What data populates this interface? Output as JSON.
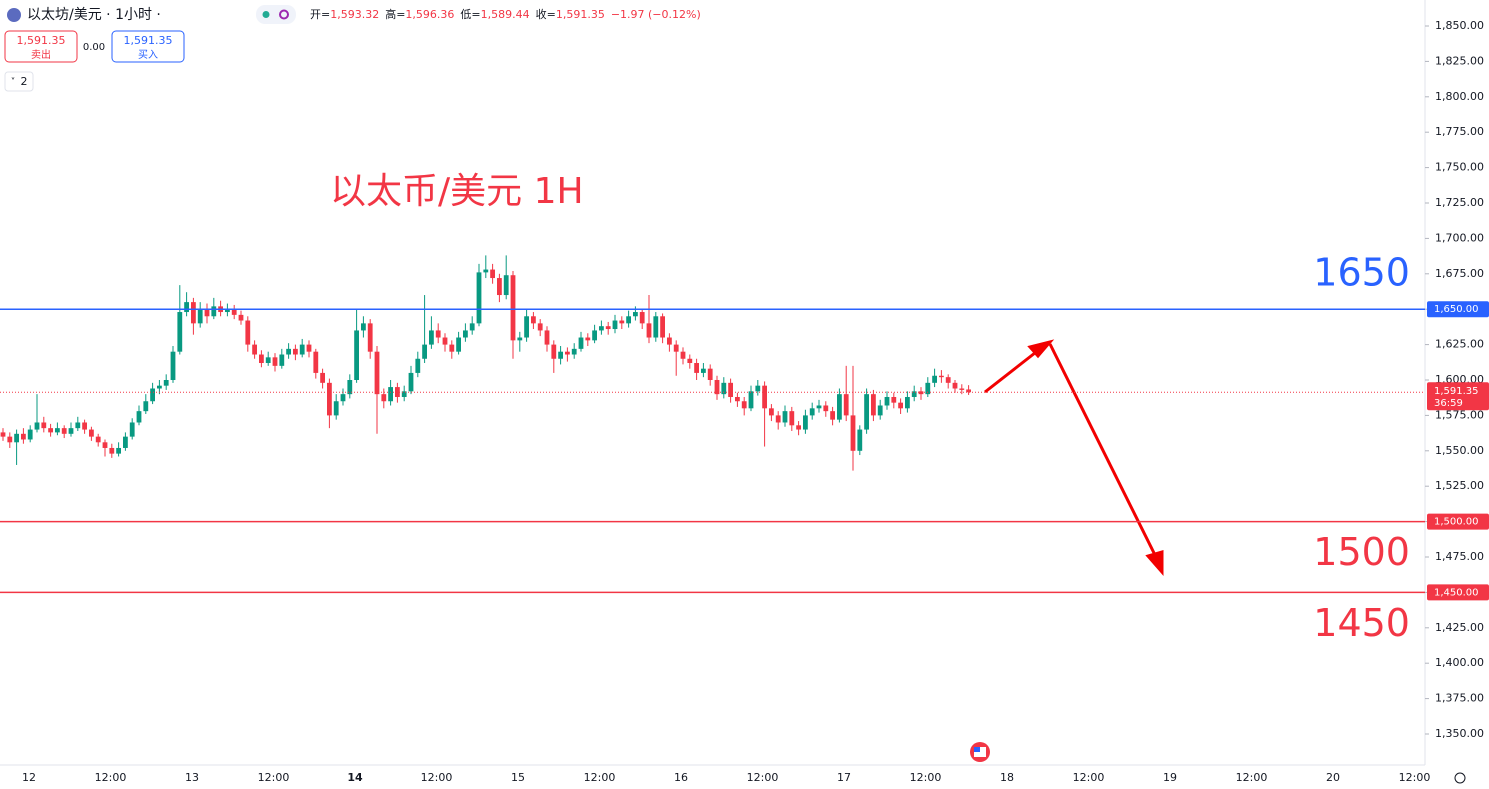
{
  "header": {
    "symbol": "以太坊/美元 · 1小时 ·",
    "ohlc": [
      {
        "label": "开=",
        "value": "1,593.32"
      },
      {
        "label": "高=",
        "value": "1,596.36"
      },
      {
        "label": "低=",
        "value": "1,589.44"
      },
      {
        "label": "收=",
        "value": "1,591.35"
      }
    ],
    "change": "−1.97 (−0.12%)",
    "sell_price": "1,591.35",
    "sell_label": "卖出",
    "spread": "0.00",
    "buy_price": "1,591.35",
    "buy_label": "买入",
    "indicators": "2"
  },
  "chart_data": {
    "type": "candlestick",
    "title": "以太币/美元 1H",
    "up_color": "#089981",
    "down_color": "#f23645",
    "ylim": [
      1350,
      1850
    ],
    "yticks": [
      {
        "value": 1350,
        "label": "1,350.00"
      },
      {
        "value": 1375,
        "label": "1,375.00"
      },
      {
        "value": 1400,
        "label": "1,400.00"
      },
      {
        "value": 1425,
        "label": "1,425.00"
      },
      {
        "value": 1450,
        "label": "1,450.00"
      },
      {
        "value": 1475,
        "label": "1,475.00"
      },
      {
        "value": 1500,
        "label": "1,500.00"
      },
      {
        "value": 1525,
        "label": "1,525.00"
      },
      {
        "value": 1550,
        "label": "1,550.00"
      },
      {
        "value": 1575,
        "label": "1,575.00"
      },
      {
        "value": 1600,
        "label": "1,600.00"
      },
      {
        "value": 1625,
        "label": "1,625.00"
      },
      {
        "value": 1650,
        "label": "1,650.00"
      },
      {
        "value": 1675,
        "label": "1,675.00"
      },
      {
        "value": 1700,
        "label": "1,700.00"
      },
      {
        "value": 1725,
        "label": "1,725.00"
      },
      {
        "value": 1750,
        "label": "1,750.00"
      },
      {
        "value": 1775,
        "label": "1,775.00"
      },
      {
        "value": 1800,
        "label": "1,800.00"
      },
      {
        "value": 1825,
        "label": "1,825.00"
      },
      {
        "value": 1850,
        "label": "1,850.00"
      }
    ],
    "xtick_labels": [
      "12",
      "12:00",
      "13",
      "12:00",
      "14",
      "12:00",
      "15",
      "12:00",
      "16",
      "12:00",
      "17",
      "12:00",
      "18",
      "12:00",
      "19",
      "12:00",
      "20",
      "12:00"
    ],
    "levels": [
      {
        "value": 1650,
        "label": "1,650.00",
        "annotation": "1650",
        "color": "#2962ff"
      },
      {
        "value": 1500,
        "label": "1,500.00",
        "annotation": "1500",
        "color": "#f23645"
      },
      {
        "value": 1450,
        "label": "1,450.00",
        "annotation": "1450",
        "color": "#f23645"
      }
    ],
    "last_price": {
      "value": 1591.35,
      "label": "1,591.35",
      "countdown": "36:59"
    },
    "ohlc": [
      [
        1563,
        1566,
        1557,
        1560
      ],
      [
        1560,
        1563,
        1552,
        1556
      ],
      [
        1556,
        1565,
        1540,
        1562
      ],
      [
        1562,
        1566,
        1555,
        1558
      ],
      [
        1558,
        1568,
        1556,
        1565
      ],
      [
        1565,
        1590,
        1563,
        1570
      ],
      [
        1570,
        1574,
        1563,
        1566
      ],
      [
        1566,
        1569,
        1560,
        1563
      ],
      [
        1563,
        1570,
        1561,
        1566
      ],
      [
        1566,
        1568,
        1559,
        1562
      ],
      [
        1562,
        1570,
        1560,
        1566
      ],
      [
        1566,
        1574,
        1564,
        1570
      ],
      [
        1570,
        1572,
        1562,
        1565
      ],
      [
        1565,
        1567,
        1557,
        1560
      ],
      [
        1560,
        1562,
        1553,
        1556
      ],
      [
        1556,
        1558,
        1546,
        1552
      ],
      [
        1552,
        1555,
        1545,
        1548
      ],
      [
        1548,
        1556,
        1546,
        1552
      ],
      [
        1552,
        1563,
        1550,
        1560
      ],
      [
        1560,
        1573,
        1558,
        1570
      ],
      [
        1570,
        1582,
        1568,
        1578
      ],
      [
        1578,
        1590,
        1576,
        1585
      ],
      [
        1585,
        1598,
        1583,
        1594
      ],
      [
        1594,
        1600,
        1590,
        1596
      ],
      [
        1596,
        1604,
        1593,
        1600
      ],
      [
        1600,
        1624,
        1598,
        1620
      ],
      [
        1620,
        1667,
        1618,
        1648
      ],
      [
        1648,
        1662,
        1645,
        1655
      ],
      [
        1655,
        1658,
        1632,
        1640
      ],
      [
        1640,
        1655,
        1637,
        1650
      ],
      [
        1650,
        1654,
        1640,
        1645
      ],
      [
        1645,
        1658,
        1643,
        1652
      ],
      [
        1652,
        1656,
        1645,
        1648
      ],
      [
        1648,
        1654,
        1645,
        1650
      ],
      [
        1650,
        1653,
        1643,
        1646
      ],
      [
        1646,
        1649,
        1639,
        1642
      ],
      [
        1642,
        1645,
        1620,
        1625
      ],
      [
        1625,
        1628,
        1615,
        1618
      ],
      [
        1618,
        1621,
        1609,
        1612
      ],
      [
        1612,
        1620,
        1610,
        1616
      ],
      [
        1616,
        1619,
        1606,
        1610
      ],
      [
        1610,
        1622,
        1608,
        1618
      ],
      [
        1618,
        1626,
        1615,
        1622
      ],
      [
        1622,
        1625,
        1614,
        1618
      ],
      [
        1618,
        1629,
        1616,
        1625
      ],
      [
        1625,
        1628,
        1616,
        1620
      ],
      [
        1620,
        1622,
        1601,
        1605
      ],
      [
        1605,
        1608,
        1594,
        1598
      ],
      [
        1598,
        1601,
        1566,
        1575
      ],
      [
        1575,
        1590,
        1572,
        1585
      ],
      [
        1585,
        1594,
        1582,
        1590
      ],
      [
        1590,
        1604,
        1587,
        1600
      ],
      [
        1600,
        1650,
        1598,
        1635
      ],
      [
        1635,
        1645,
        1630,
        1640
      ],
      [
        1640,
        1643,
        1615,
        1620
      ],
      [
        1620,
        1624,
        1562,
        1590
      ],
      [
        1590,
        1594,
        1580,
        1585
      ],
      [
        1585,
        1600,
        1582,
        1595
      ],
      [
        1595,
        1598,
        1584,
        1588
      ],
      [
        1588,
        1596,
        1585,
        1592
      ],
      [
        1592,
        1610,
        1590,
        1605
      ],
      [
        1605,
        1620,
        1602,
        1615
      ],
      [
        1615,
        1660,
        1612,
        1625
      ],
      [
        1625,
        1645,
        1622,
        1635
      ],
      [
        1635,
        1640,
        1626,
        1630
      ],
      [
        1630,
        1633,
        1620,
        1625
      ],
      [
        1625,
        1628,
        1615,
        1620
      ],
      [
        1620,
        1634,
        1618,
        1630
      ],
      [
        1630,
        1640,
        1627,
        1635
      ],
      [
        1635,
        1645,
        1632,
        1640
      ],
      [
        1640,
        1682,
        1638,
        1676
      ],
      [
        1676,
        1688,
        1672,
        1678
      ],
      [
        1678,
        1682,
        1668,
        1672
      ],
      [
        1672,
        1675,
        1655,
        1660
      ],
      [
        1660,
        1688,
        1657,
        1674
      ],
      [
        1674,
        1677,
        1615,
        1628
      ],
      [
        1628,
        1634,
        1620,
        1630
      ],
      [
        1630,
        1650,
        1627,
        1645
      ],
      [
        1645,
        1648,
        1636,
        1640
      ],
      [
        1640,
        1643,
        1631,
        1635
      ],
      [
        1635,
        1638,
        1620,
        1625
      ],
      [
        1625,
        1628,
        1605,
        1615
      ],
      [
        1615,
        1624,
        1611,
        1620
      ],
      [
        1620,
        1623,
        1613,
        1618
      ],
      [
        1618,
        1626,
        1615,
        1622
      ],
      [
        1622,
        1634,
        1620,
        1630
      ],
      [
        1630,
        1633,
        1624,
        1628
      ],
      [
        1628,
        1639,
        1626,
        1635
      ],
      [
        1635,
        1642,
        1632,
        1638
      ],
      [
        1638,
        1641,
        1632,
        1636
      ],
      [
        1636,
        1646,
        1633,
        1642
      ],
      [
        1642,
        1645,
        1636,
        1640
      ],
      [
        1640,
        1649,
        1637,
        1645
      ],
      [
        1645,
        1652,
        1642,
        1648
      ],
      [
        1648,
        1650,
        1636,
        1640
      ],
      [
        1640,
        1660,
        1626,
        1630
      ],
      [
        1630,
        1648,
        1627,
        1645
      ],
      [
        1645,
        1647,
        1626,
        1630
      ],
      [
        1630,
        1633,
        1620,
        1625
      ],
      [
        1625,
        1628,
        1603,
        1620
      ],
      [
        1620,
        1623,
        1611,
        1615
      ],
      [
        1615,
        1618,
        1608,
        1612
      ],
      [
        1612,
        1615,
        1600,
        1605
      ],
      [
        1605,
        1612,
        1602,
        1608
      ],
      [
        1608,
        1611,
        1596,
        1600
      ],
      [
        1600,
        1603,
        1586,
        1590
      ],
      [
        1590,
        1602,
        1587,
        1598
      ],
      [
        1598,
        1601,
        1584,
        1588
      ],
      [
        1588,
        1591,
        1581,
        1585
      ],
      [
        1585,
        1588,
        1575,
        1580
      ],
      [
        1580,
        1596,
        1578,
        1592
      ],
      [
        1592,
        1600,
        1589,
        1596
      ],
      [
        1596,
        1599,
        1553,
        1580
      ],
      [
        1580,
        1583,
        1571,
        1575
      ],
      [
        1575,
        1578,
        1565,
        1570
      ],
      [
        1570,
        1582,
        1567,
        1578
      ],
      [
        1578,
        1581,
        1564,
        1568
      ],
      [
        1568,
        1571,
        1561,
        1565
      ],
      [
        1565,
        1579,
        1562,
        1575
      ],
      [
        1575,
        1584,
        1572,
        1580
      ],
      [
        1580,
        1586,
        1577,
        1582
      ],
      [
        1582,
        1585,
        1574,
        1578
      ],
      [
        1578,
        1581,
        1568,
        1572
      ],
      [
        1572,
        1594,
        1570,
        1590
      ],
      [
        1590,
        1610,
        1571,
        1575
      ],
      [
        1575,
        1610,
        1536,
        1550
      ],
      [
        1550,
        1568,
        1547,
        1565
      ],
      [
        1565,
        1594,
        1562,
        1590
      ],
      [
        1590,
        1593,
        1571,
        1575
      ],
      [
        1575,
        1586,
        1572,
        1582
      ],
      [
        1582,
        1592,
        1579,
        1588
      ],
      [
        1588,
        1591,
        1580,
        1584
      ],
      [
        1584,
        1587,
        1576,
        1580
      ],
      [
        1580,
        1592,
        1577,
        1588
      ],
      [
        1588,
        1596,
        1585,
        1592
      ],
      [
        1592,
        1595,
        1586,
        1590
      ],
      [
        1590,
        1602,
        1588,
        1598
      ],
      [
        1598,
        1608,
        1595,
        1603
      ],
      [
        1603,
        1607,
        1598,
        1602
      ],
      [
        1602,
        1604,
        1594,
        1598
      ],
      [
        1598,
        1600,
        1591,
        1594
      ],
      [
        1594,
        1597,
        1590,
        1593
      ],
      [
        1593.32,
        1596.36,
        1589.44,
        1591.35
      ]
    ]
  }
}
